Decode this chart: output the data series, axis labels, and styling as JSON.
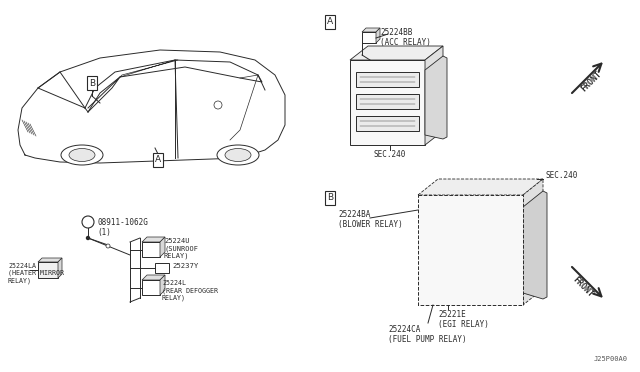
{
  "bg_color": "#ffffff",
  "line_color": "#2a2a2a",
  "fig_width": 6.4,
  "fig_height": 3.72,
  "dpi": 100,
  "labels": {
    "part_A_box": "A",
    "part_B_box": "B",
    "car_B_box": "B",
    "car_A_box": "A",
    "acc_relay": "25224BB\n(ACC RELAY)",
    "sec240_A": "SEC.240",
    "blower_relay": "25224BA\n(BLOWER RELAY)",
    "sec240_B": "SEC.240",
    "egi_relay": "25221E\n(EGI RELAY)",
    "fuel_pump": "25224CA\n(FUEL PUMP RELAY)",
    "sunroof_relay": "25224U\n(SUNROOF\nRELAY)",
    "part_25237Y": "25237Y",
    "rear_defogger": "25224L\n(REAR DEFOGGER\nRELAY)",
    "heater_mirror": "25224LA\n(HEATER MIRROR\nRELAY)",
    "nut_label": "08911-1062G\n(1)",
    "part_num_bottom": "J25P00A0"
  }
}
